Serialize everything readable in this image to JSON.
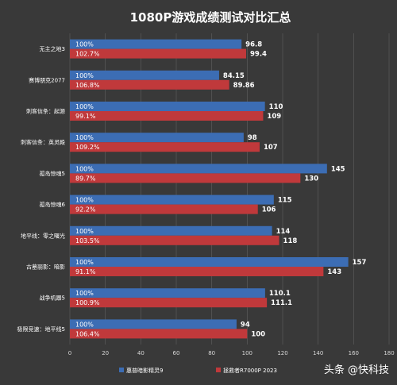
{
  "chart_data": {
    "type": "bar",
    "orientation": "horizontal",
    "title": "1080P游戏成绩测试对比汇总",
    "categories": [
      "无主之地3",
      "赛博朋克2077",
      "刺客信条：起源",
      "刺客信条：英灵殿",
      "孤岛惊魂5",
      "孤岛惊魂6",
      "地平线：零之曙光",
      "古墓丽影：暗影",
      "战争机器5",
      "极限竞速：地平线5"
    ],
    "series": [
      {
        "name": "惠普暗影精灵9",
        "color": "#3c6db4",
        "values": [
          96.8,
          84.15,
          110,
          98,
          145,
          115,
          114,
          157,
          110.1,
          94
        ],
        "value_labels": [
          "96.8",
          "84.15",
          "110",
          "98",
          "145",
          "115",
          "114",
          "157",
          "110.1",
          "94"
        ],
        "percent_labels": [
          "100%",
          "100%",
          "100%",
          "100%",
          "100%",
          "100%",
          "100%",
          "100%",
          "100%",
          "100%"
        ]
      },
      {
        "name": "拯救者R7000P 2023",
        "color": "#c0393b",
        "values": [
          99.4,
          89.86,
          109,
          107,
          130,
          106,
          118,
          143,
          111.1,
          100
        ],
        "value_labels": [
          "99.4",
          "89.86",
          "109",
          "107",
          "130",
          "106",
          "118",
          "143",
          "111.1",
          "100"
        ],
        "percent_labels": [
          "102.7%",
          "106.8%",
          "99.1%",
          "109.2%",
          "89.7%",
          "92.2%",
          "103.5%",
          "91.1%",
          "100.9%",
          "106.4%"
        ]
      }
    ],
    "xlim": [
      0,
      180
    ],
    "xticks": [
      "0",
      "20",
      "40",
      "60",
      "80",
      "100",
      "120",
      "140",
      "160",
      "180"
    ],
    "grid": true,
    "legend_position": "bottom"
  },
  "watermark": "头条 @快科技"
}
